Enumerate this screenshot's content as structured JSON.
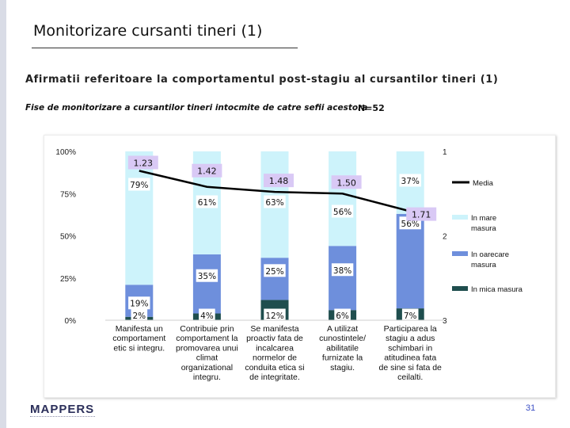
{
  "page": {
    "title": "Monitorizare cursanti tineri (1)",
    "subtitle": "Afirmatii referitoare la comportamentul post-stagiu al cursantilor tineri (1)",
    "note": "Fise de monitorizare a cursantilor tineri intocmite de catre sefii acestora",
    "n_label": "N=52",
    "logo": "MAPPERS",
    "page_number": "31"
  },
  "chart_data": {
    "type": "bar",
    "stacked": true,
    "categories": [
      "Manifesta un comportament etic si integru.",
      "Contribuie prin comportament la promovarea unui climat organizational integru.",
      "Se manifesta proactiv fata de incalcarea normelor de conduita etica si de integritate.",
      "A utilizat cunostintele/ abilitatile furnizate la stagiu.",
      "Participarea la stagiu a adus schimbari in atitudinea fata de sine si fata de ceilalti."
    ],
    "category_lines": [
      [
        "Manifesta un",
        "comportament",
        "etic si integru."
      ],
      [
        "Contribuie prin",
        "comportament la",
        "promovarea unui",
        "climat",
        "organizational",
        "integru."
      ],
      [
        "Se manifesta",
        "proactiv fata de",
        "incalcarea",
        "normelor de",
        "conduita etica si",
        "de integritate."
      ],
      [
        "A utilizat",
        "cunostintele/",
        "abilitatile",
        "furnizate la",
        "stagiu."
      ],
      [
        "Participarea la",
        "stagiu a adus",
        "schimbari in",
        "atitudinea fata",
        "de sine si fata de",
        "ceilalti."
      ]
    ],
    "series": [
      {
        "name": "In mica masura",
        "color": "#1f4e4e",
        "values": [
          2,
          4,
          12,
          6,
          7
        ],
        "labels": [
          "2%",
          "4%",
          "12%",
          "6%",
          "7%"
        ]
      },
      {
        "name": "In oarecare masura",
        "color": "#6e8fdc",
        "values": [
          19,
          35,
          25,
          38,
          56
        ],
        "labels": [
          "19%",
          "35%",
          "25%",
          "38%",
          "56%"
        ]
      },
      {
        "name": "In mare masura",
        "color": "#cdf3fb",
        "values": [
          79,
          61,
          63,
          56,
          37
        ],
        "labels": [
          "79%",
          "61%",
          "63%",
          "56%",
          "37%"
        ]
      }
    ],
    "line": {
      "name": "Media",
      "color": "#000000",
      "values": [
        1.23,
        1.42,
        1.48,
        1.5,
        1.71
      ],
      "labels": [
        "1.23",
        "1.42",
        "1.48",
        "1.50",
        "1.71"
      ]
    },
    "y_left": {
      "min": 0,
      "max": 100,
      "ticks": [
        "0%",
        "25%",
        "50%",
        "75%",
        "100%"
      ]
    },
    "y_right": {
      "min": 1,
      "max": 3,
      "ticks": [
        "1",
        "2",
        "3"
      ]
    },
    "legend_position": "right",
    "legend": [
      "Media",
      "In mare masura",
      "In oarecare masura",
      "In mica masura"
    ]
  }
}
